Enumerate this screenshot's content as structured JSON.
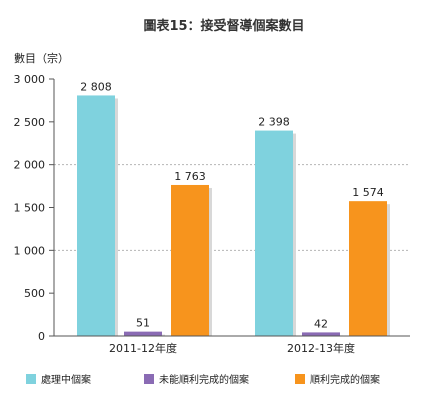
{
  "chart_data": {
    "type": "bar",
    "title": "圖表15：接受督導個案數目",
    "ylabel": "數目（宗）",
    "xlabel": "",
    "ylim": [
      0,
      3000
    ],
    "yticks": [
      0,
      500,
      1000,
      1500,
      2000,
      2500,
      3000
    ],
    "ytick_labels": [
      "0",
      "500",
      "1 000",
      "1 500",
      "2 000",
      "2 500",
      "3 000"
    ],
    "categories": [
      "2011-12年度",
      "2012-13年度"
    ],
    "grid": "dashed-horizontal",
    "legend_position": "bottom",
    "series": [
      {
        "name": "處理中個案",
        "color": "#7fd2de",
        "values": [
          2808,
          2398
        ],
        "labels": [
          "2 808",
          "2 398"
        ]
      },
      {
        "name": "未能順利完成的個案",
        "color": "#8a6bb4",
        "values": [
          51,
          42
        ],
        "labels": [
          "51",
          "42"
        ]
      },
      {
        "name": "順利完成的個案",
        "color": "#f7941d",
        "values": [
          1763,
          1574
        ],
        "labels": [
          "1 763",
          "1 574"
        ]
      }
    ]
  }
}
